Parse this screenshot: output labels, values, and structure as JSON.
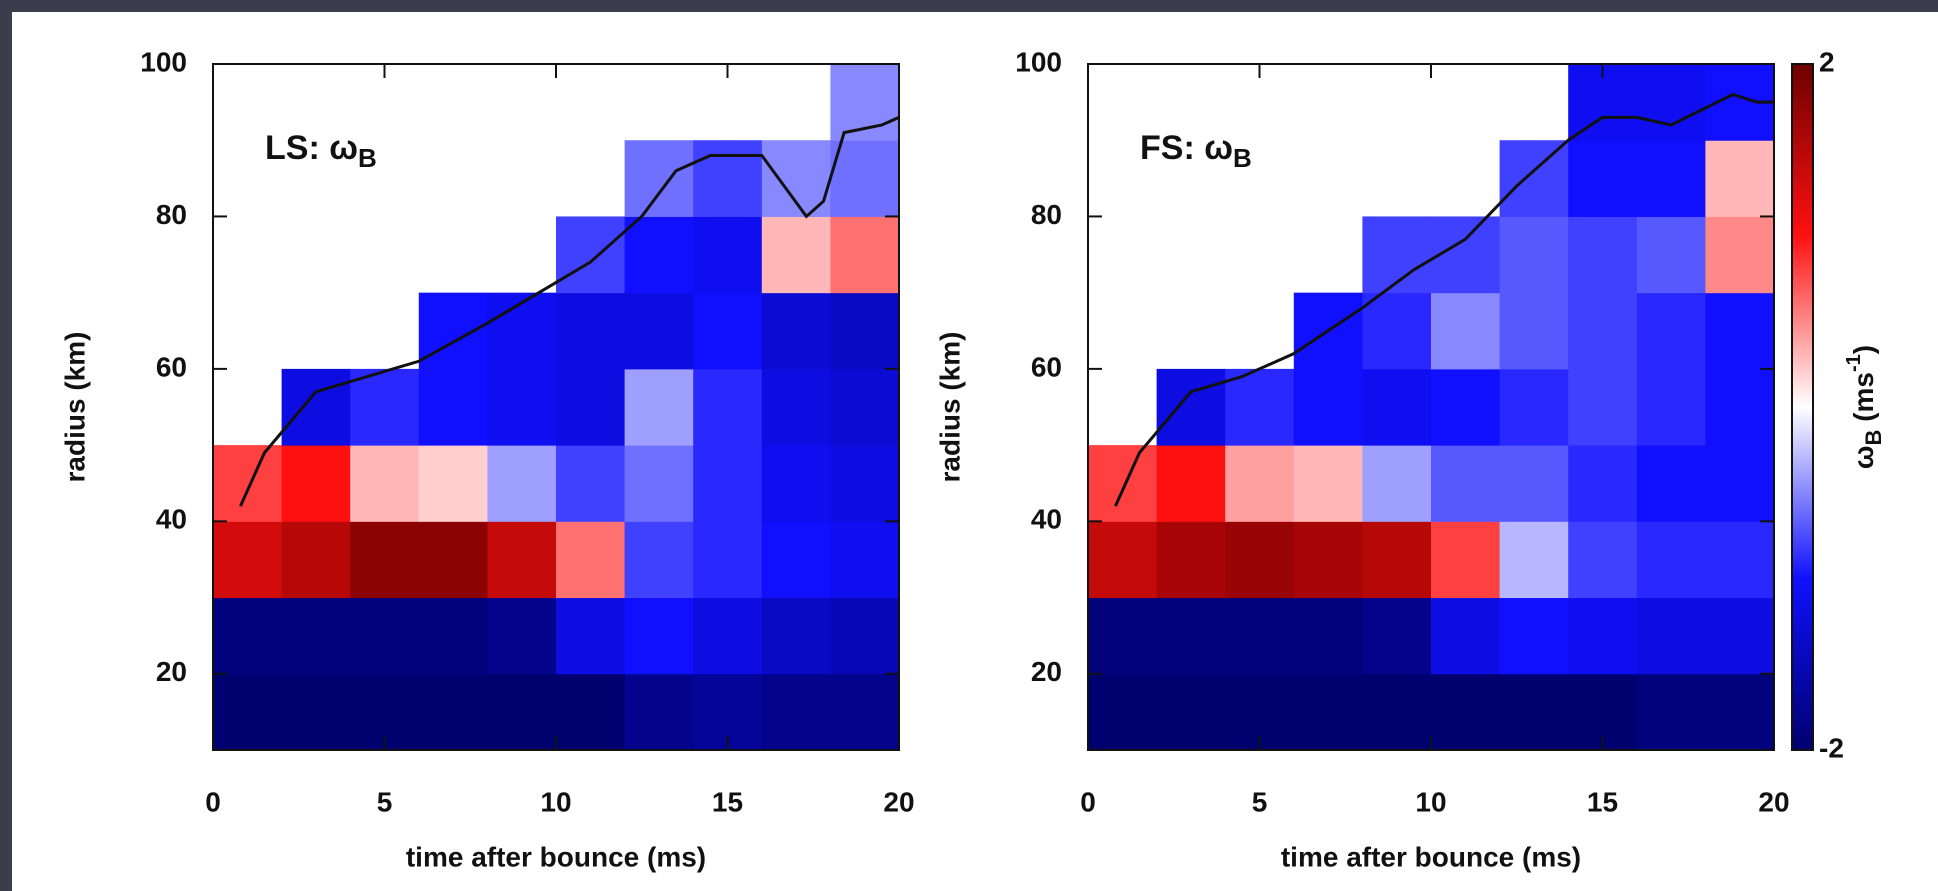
{
  "chart_data": [
    {
      "type": "heatmap",
      "label": "LS: ω",
      "label_sub": "B",
      "xlabel": "time after bounce (ms)",
      "ylabel": "radius (km)",
      "xlim": [
        0,
        20
      ],
      "ylim": [
        10,
        100
      ],
      "xticks": [
        0,
        5,
        10,
        15,
        20
      ],
      "yticks": [
        20,
        40,
        60,
        80,
        100
      ],
      "zlim": [
        -2,
        2
      ],
      "colorscale": [
        "#00006e",
        "#1010ff",
        "#ffffff",
        "#ff1010",
        "#6e0000"
      ],
      "x_bins": [
        0,
        2,
        4,
        6,
        8,
        10,
        12,
        14,
        16,
        18,
        20
      ],
      "y_bins": [
        10,
        20,
        30,
        40,
        50,
        60,
        70,
        80,
        90,
        100
      ],
      "z": [
        [
          -2,
          -2,
          -2,
          -2,
          -2,
          -2,
          -1.8,
          -1.7,
          -1.8,
          -1.8
        ],
        [
          -1.9,
          -1.9,
          -1.9,
          -1.9,
          -1.8,
          -1.2,
          -1,
          -1.2,
          -1.4,
          -1.5
        ],
        [
          1.3,
          1.5,
          1.8,
          1.8,
          1.4,
          0.6,
          -0.8,
          -0.9,
          -1,
          -1.1
        ],
        [
          0.8,
          1,
          0.3,
          0.2,
          -0.4,
          -0.8,
          -0.6,
          -0.9,
          -1.1,
          -1.2
        ],
        [
          null,
          -1.2,
          -0.9,
          -1,
          -1.1,
          -1.2,
          -0.4,
          -0.9,
          -1.2,
          -1.3
        ],
        [
          null,
          null,
          null,
          -1,
          -1.1,
          -1.2,
          -1.2,
          -1,
          -1.3,
          -1.4
        ],
        [
          null,
          null,
          null,
          null,
          null,
          -0.8,
          -1,
          -1.1,
          0.3,
          0.6
        ],
        [
          null,
          null,
          null,
          null,
          null,
          null,
          -0.6,
          -0.8,
          -0.5,
          -0.6
        ],
        [
          null,
          null,
          null,
          null,
          null,
          null,
          null,
          null,
          null,
          -0.5
        ]
      ],
      "shock": {
        "x": [
          0.8,
          1.5,
          3,
          4.5,
          6,
          8,
          9.5,
          11,
          12.5,
          13.5,
          14.5,
          16,
          17.3,
          17.8,
          18.4,
          19.5,
          20
        ],
        "y": [
          42,
          49,
          57,
          59,
          61,
          66,
          70,
          74,
          80,
          86,
          88,
          88,
          80,
          82,
          91,
          92,
          93
        ]
      }
    },
    {
      "type": "heatmap",
      "label": "FS: ω",
      "label_sub": "B",
      "xlabel": "time after bounce (ms)",
      "ylabel": "radius (km)",
      "xlim": [
        0,
        20
      ],
      "ylim": [
        10,
        100
      ],
      "xticks": [
        0,
        5,
        10,
        15,
        20
      ],
      "yticks": [
        20,
        40,
        60,
        80,
        100
      ],
      "zlim": [
        -2,
        2
      ],
      "zticks": [
        -2,
        2
      ],
      "colorscale": [
        "#00006e",
        "#1010ff",
        "#ffffff",
        "#ff1010",
        "#6e0000"
      ],
      "colorbar_label": [
        "ω",
        "B",
        " (ms",
        "-1",
        ")"
      ],
      "x_bins": [
        0,
        2,
        4,
        6,
        8,
        10,
        12,
        14,
        16,
        18,
        20
      ],
      "y_bins": [
        10,
        20,
        30,
        40,
        50,
        60,
        70,
        80,
        90,
        100
      ],
      "z": [
        [
          -2,
          -2,
          -2,
          -2,
          -2,
          -2,
          -2,
          -2,
          -1.9,
          -1.9
        ],
        [
          -1.9,
          -1.9,
          -1.9,
          -1.9,
          -1.8,
          -1.2,
          -1,
          -1.1,
          -1.2,
          -1.2
        ],
        [
          1.4,
          1.6,
          1.7,
          1.6,
          1.5,
          0.8,
          -0.3,
          -0.8,
          -0.9,
          -0.9
        ],
        [
          0.8,
          1,
          0.4,
          0.3,
          -0.4,
          -0.7,
          -0.7,
          -0.9,
          -1,
          -1
        ],
        [
          null,
          -1.2,
          -0.9,
          -1,
          -1.1,
          -1,
          -0.9,
          -0.8,
          -0.9,
          -1
        ],
        [
          null,
          null,
          null,
          -1,
          -0.9,
          -0.5,
          -0.7,
          -0.8,
          -0.9,
          -1
        ],
        [
          null,
          null,
          null,
          null,
          -0.8,
          -0.8,
          -0.7,
          -0.8,
          -0.7,
          0.5
        ],
        [
          null,
          null,
          null,
          null,
          null,
          null,
          -0.8,
          -1,
          -1,
          0.3
        ],
        [
          null,
          null,
          null,
          null,
          null,
          null,
          null,
          -1.1,
          -1.1,
          -1
        ]
      ],
      "shock": {
        "x": [
          0.8,
          1.5,
          3,
          4.5,
          6,
          8,
          9.5,
          11,
          12.5,
          14,
          15,
          16,
          17,
          18.8,
          19.5,
          20
        ],
        "y": [
          42,
          49,
          57,
          59,
          62,
          68,
          73,
          77,
          84,
          90,
          93,
          93,
          92,
          96,
          95,
          95
        ]
      }
    }
  ]
}
